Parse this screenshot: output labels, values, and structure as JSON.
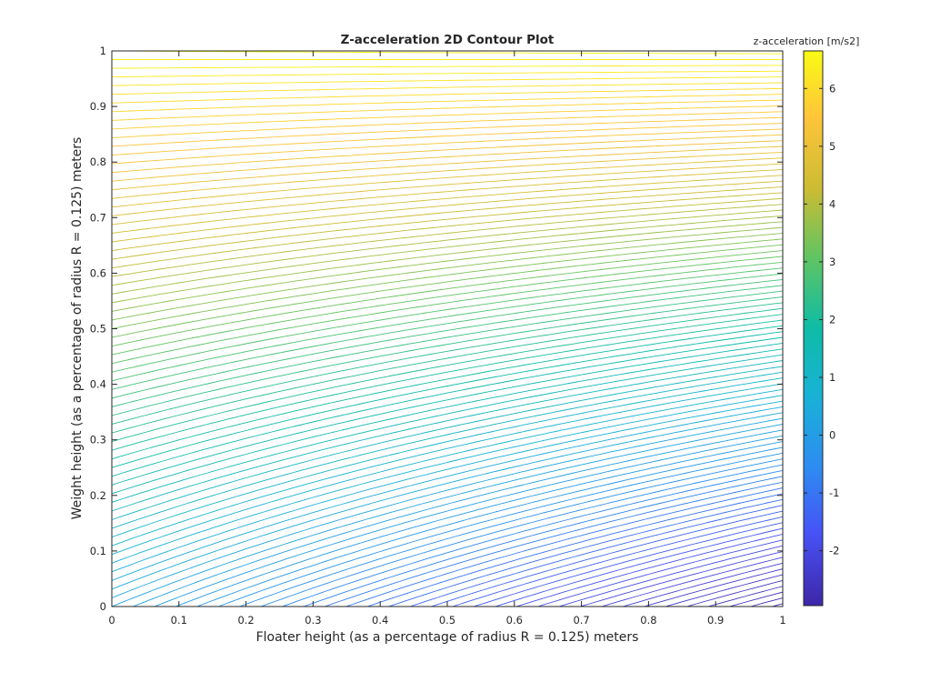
{
  "chart_data": {
    "type": "contour",
    "title": "Z-acceleration 2D Contour Plot",
    "xlabel": "Floater height (as a percentage of radius R = 0.125) meters",
    "ylabel": "Weight height (as a percentage of radius R = 0.125) meters",
    "xlim": [
      0,
      1
    ],
    "ylim": [
      0,
      1
    ],
    "xticks": [
      "0",
      "0.1",
      "0.2",
      "0.3",
      "0.4",
      "0.5",
      "0.6",
      "0.7",
      "0.8",
      "0.9",
      "1"
    ],
    "yticks": [
      "0",
      "0.1",
      "0.2",
      "0.3",
      "0.4",
      "0.5",
      "0.6",
      "0.7",
      "0.8",
      "0.9",
      "1"
    ],
    "grid": false,
    "colorbar": {
      "label": "z-acceleration [m/s2]",
      "range": [
        -2.95,
        6.65
      ],
      "ticks": [
        "-2",
        "-1",
        "0",
        "1",
        "2",
        "3",
        "4",
        "5",
        "6"
      ],
      "colormap": "parula",
      "color_low": "#3e26a8",
      "color_high": "#f9fb15"
    },
    "field": {
      "z_at_x0_y0": 0.2,
      "z_at_x1_y0": -2.95,
      "z_at_x0_y1": 6.6,
      "z_at_x1_y1": 6.65,
      "level_step": 0.1
    }
  }
}
